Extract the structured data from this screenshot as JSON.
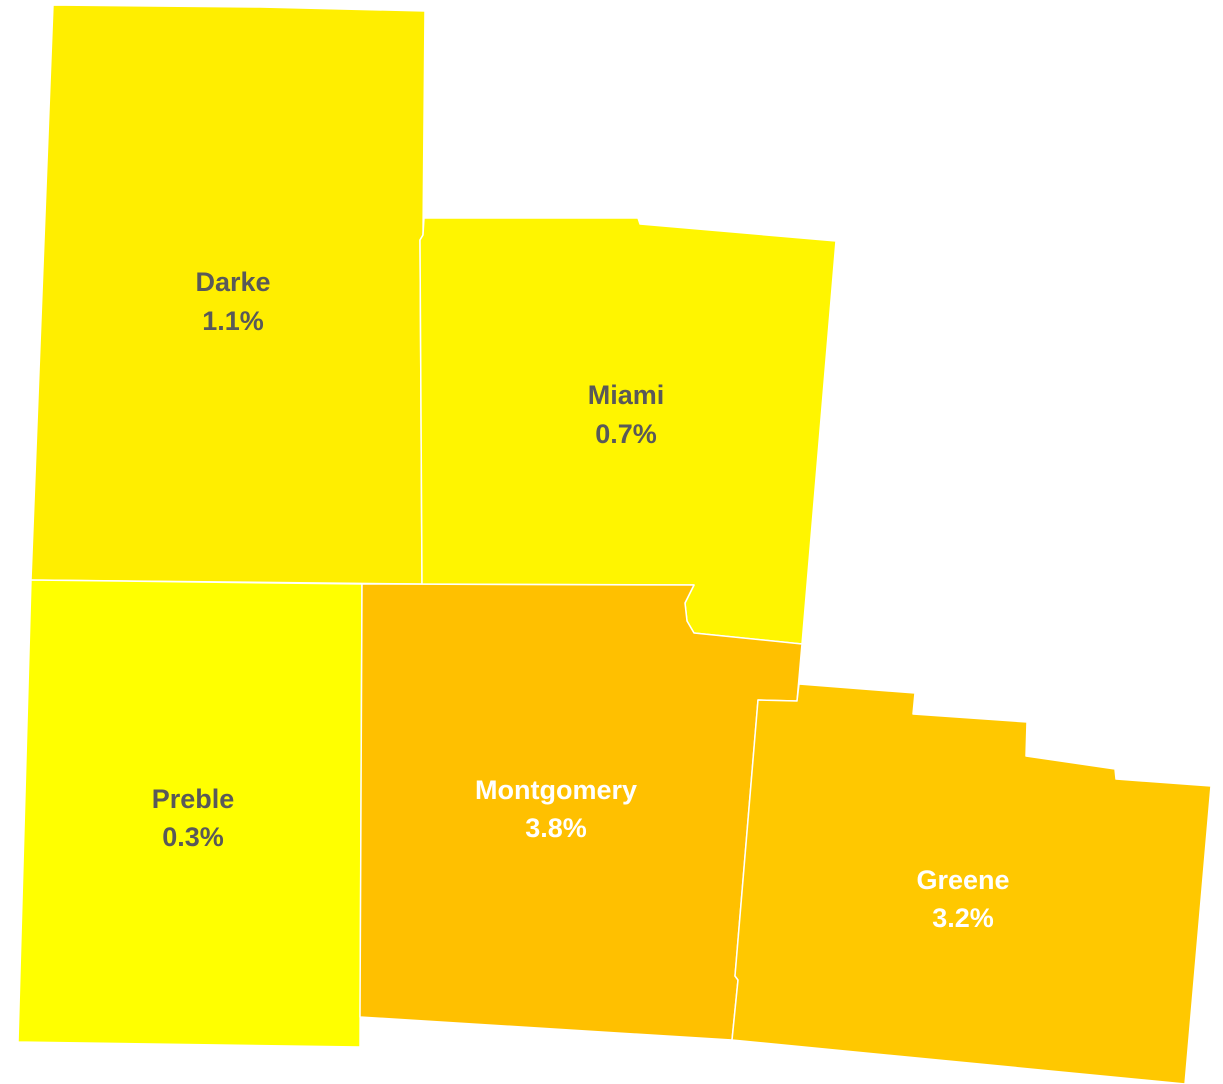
{
  "counties": [
    {
      "id": "darke",
      "name": "Darke",
      "value": "1.1%",
      "fill": "#FFEE00",
      "label_color": "#595959"
    },
    {
      "id": "miami",
      "name": "Miami",
      "value": "0.7%",
      "fill": "#FFF500",
      "label_color": "#595959"
    },
    {
      "id": "preble",
      "name": "Preble",
      "value": "0.3%",
      "fill": "#FFFF00",
      "label_color": "#595959"
    },
    {
      "id": "montgomery",
      "name": "Montgomery",
      "value": "3.8%",
      "fill": "#FFC000",
      "label_color": "#FFFFFF"
    },
    {
      "id": "greene",
      "name": "Greene",
      "value": "3.2%",
      "fill": "#FFC800",
      "label_color": "#FFFFFF"
    }
  ]
}
